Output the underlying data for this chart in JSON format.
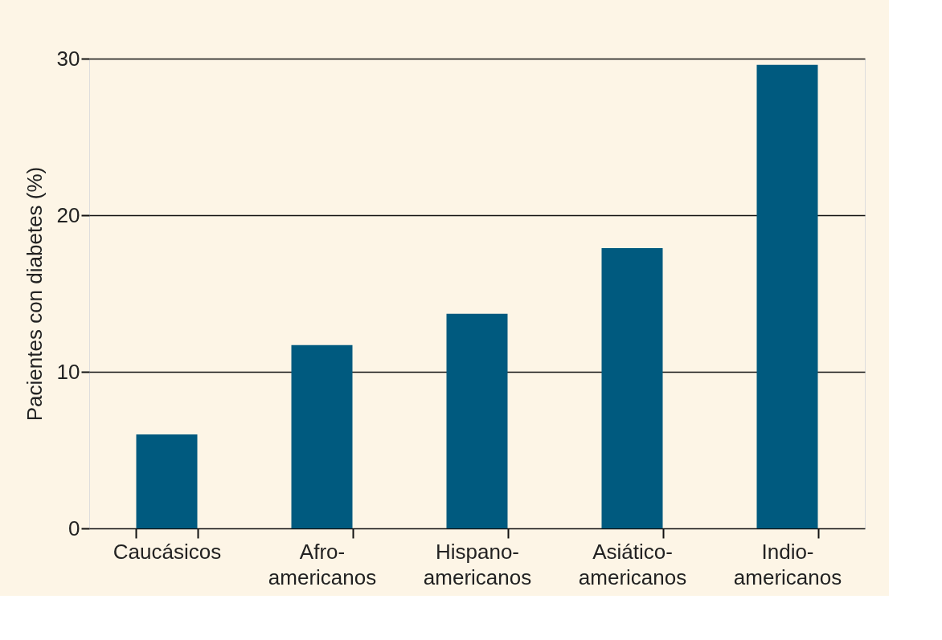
{
  "chart_data": {
    "type": "bar",
    "ylabel": "Pacientes con diabetes (%)",
    "categories": [
      "Caucásicos",
      "Afro-americanos",
      "Hispano-americanos",
      "Asiático-americanos",
      "Indio-americanos"
    ],
    "values": [
      6.0,
      11.7,
      13.7,
      17.9,
      29.6
    ],
    "color": "#005a7f",
    "ylim": [
      0,
      30
    ],
    "yticks": [
      0,
      10,
      20,
      30
    ],
    "grid": "y"
  }
}
